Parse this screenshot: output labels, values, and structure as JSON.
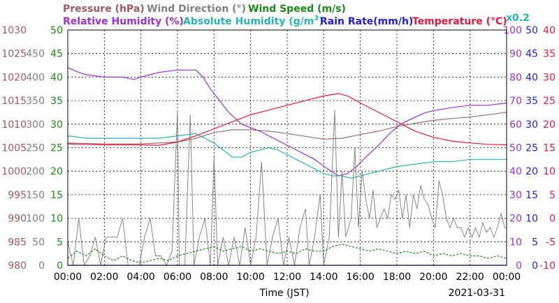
{
  "chart_data": {
    "type": "line",
    "date": "2021-03-31",
    "xlabel": "Time (JST)",
    "x_ticks": [
      "00:00",
      "02:00",
      "04:00",
      "06:00",
      "08:00",
      "10:00",
      "12:00",
      "14:00",
      "16:00",
      "18:00",
      "20:00",
      "22:00",
      "00:00"
    ],
    "x_range_hours": [
      0,
      24
    ],
    "grid": true,
    "legend_placement": "top",
    "legend": {
      "pressure": "Pressure (hPa)",
      "wind_direction": "Wind Direction (°)",
      "wind_speed": "Wind Speed (m/s)",
      "relative_humidity": "Relative Humidity (%)",
      "absolute_humidity_prefix": "Absolute Humidity (g/m",
      "absolute_humidity_sup": "3",
      "absolute_humidity_suffix": ")",
      "rain_rate": "Rain Rate(mm/h)",
      "temperature": "Temperature (°C)",
      "multiplier": "x0.2"
    },
    "axes": {
      "pressure": {
        "ticks": [
          "1030",
          "1025",
          "1020",
          "1015",
          "1010",
          "1005",
          "1000",
          "995",
          "990",
          "985",
          "980"
        ],
        "range": [
          980,
          1030
        ],
        "color": "#a05a5a"
      },
      "wind_direction": {
        "ticks": [
          "450",
          "400",
          "350",
          "300",
          "250",
          "200",
          "150",
          "100",
          "50",
          "0"
        ],
        "range": [
          0,
          500
        ],
        "color": "#808080"
      },
      "wind_speed": {
        "ticks": [
          "50",
          "45",
          "40",
          "35",
          "30",
          "25",
          "20",
          "15",
          "10",
          "5",
          "0"
        ],
        "range": [
          0,
          50
        ],
        "color": "#1a8a1a"
      },
      "relative_humidity": {
        "ticks": [
          "100",
          "90",
          "80",
          "70",
          "60",
          "50",
          "40",
          "30",
          "20",
          "10",
          "0"
        ],
        "range": [
          0,
          100
        ],
        "color": "#9b30d8"
      },
      "rain_rate": {
        "ticks": [
          "50",
          "45",
          "40",
          "35",
          "30",
          "25",
          "20",
          "15",
          "10",
          "5",
          "0"
        ],
        "range": [
          0,
          50
        ],
        "color": "#1e1ee6"
      },
      "temperature": {
        "ticks": [
          "40",
          "35",
          "30",
          "25",
          "20",
          "15",
          "10",
          "5",
          "0",
          "-5",
          "-10"
        ],
        "range": [
          -10,
          40
        ],
        "color": "#e6193c"
      }
    },
    "series": [
      {
        "name": "Pressure (hPa)",
        "key": "pressure",
        "color": "#a07070",
        "points": [
          [
            0,
            1006.0
          ],
          [
            2,
            1005.8
          ],
          [
            4,
            1005.8
          ],
          [
            6,
            1006.2
          ],
          [
            7,
            1007.0
          ],
          [
            8,
            1008.2
          ],
          [
            9,
            1008.8
          ],
          [
            10,
            1008.8
          ],
          [
            11,
            1008.5
          ],
          [
            12,
            1008.0
          ],
          [
            13,
            1007.4
          ],
          [
            14,
            1006.8
          ],
          [
            15,
            1007.0
          ],
          [
            16,
            1007.8
          ],
          [
            17,
            1008.5
          ],
          [
            18,
            1009.5
          ],
          [
            19,
            1010.2
          ],
          [
            20,
            1010.8
          ],
          [
            21,
            1011.2
          ],
          [
            22,
            1011.5
          ],
          [
            23,
            1012.0
          ],
          [
            24,
            1012.5
          ]
        ]
      },
      {
        "name": "Relative Humidity (%)",
        "key": "relative_humidity",
        "color": "#9b30d8",
        "points": [
          [
            0,
            84
          ],
          [
            0.3,
            83
          ],
          [
            0.6,
            82
          ],
          [
            1,
            81
          ],
          [
            2,
            80
          ],
          [
            3,
            80
          ],
          [
            3.6,
            79
          ],
          [
            4,
            80
          ],
          [
            4.5,
            81
          ],
          [
            5,
            82
          ],
          [
            6,
            83
          ],
          [
            7,
            83
          ],
          [
            7.4,
            80
          ],
          [
            7.8,
            75
          ],
          [
            8.3,
            70
          ],
          [
            8.8,
            65
          ],
          [
            9.5,
            60
          ],
          [
            10.5,
            57
          ],
          [
            11.5,
            53
          ],
          [
            12.5,
            49
          ],
          [
            13.5,
            45
          ],
          [
            14.2,
            41
          ],
          [
            14.8,
            38
          ],
          [
            15.3,
            39
          ],
          [
            15.8,
            42
          ],
          [
            16.3,
            46
          ],
          [
            17,
            51
          ],
          [
            17.6,
            56
          ],
          [
            18.2,
            60
          ],
          [
            19,
            63
          ],
          [
            19.6,
            65
          ],
          [
            20.2,
            66
          ],
          [
            21,
            67
          ],
          [
            22,
            68
          ],
          [
            23,
            68
          ],
          [
            24,
            69
          ]
        ]
      },
      {
        "name": "Absolute Humidity (g/m3)",
        "key": "absolute_humidity_x0.2",
        "color": "#28b4b4",
        "points": [
          [
            0,
            55
          ],
          [
            1,
            54
          ],
          [
            2,
            54
          ],
          [
            3,
            54
          ],
          [
            4,
            54
          ],
          [
            5,
            54
          ],
          [
            6,
            55
          ],
          [
            7,
            56
          ],
          [
            7.5,
            54
          ],
          [
            8,
            52
          ],
          [
            8.5,
            49
          ],
          [
            9,
            46
          ],
          [
            9.5,
            46
          ],
          [
            10,
            48
          ],
          [
            10.5,
            49
          ],
          [
            11,
            50
          ],
          [
            11.5,
            49
          ],
          [
            12,
            47
          ],
          [
            12.5,
            45
          ],
          [
            13,
            43
          ],
          [
            13.5,
            41
          ],
          [
            14,
            39
          ],
          [
            14.5,
            38
          ],
          [
            15,
            38
          ],
          [
            15.5,
            37
          ],
          [
            16,
            38
          ],
          [
            17,
            40
          ],
          [
            18,
            42
          ],
          [
            19,
            43
          ],
          [
            20,
            44
          ],
          [
            21,
            44
          ],
          [
            22,
            45
          ],
          [
            23,
            45
          ],
          [
            24,
            45
          ]
        ]
      },
      {
        "name": "Temperature (°C)",
        "key": "temperature",
        "color": "#e6193c",
        "points": [
          [
            0,
            15.8
          ],
          [
            1,
            15.7
          ],
          [
            2,
            15.6
          ],
          [
            3,
            15.6
          ],
          [
            4,
            15.6
          ],
          [
            5,
            15.5
          ],
          [
            6,
            16.2
          ],
          [
            7,
            17.5
          ],
          [
            8,
            19.0
          ],
          [
            9,
            20.5
          ],
          [
            10,
            22.0
          ],
          [
            11,
            23.0
          ],
          [
            12,
            24.0
          ],
          [
            13,
            25.0
          ],
          [
            14,
            26.0
          ],
          [
            14.8,
            26.5
          ],
          [
            15.3,
            26.0
          ],
          [
            16,
            24.5
          ],
          [
            17,
            22.5
          ],
          [
            18,
            20.5
          ],
          [
            19,
            18.5
          ],
          [
            20,
            17.2
          ],
          [
            21,
            16.4
          ],
          [
            22,
            16.0
          ],
          [
            23,
            15.7
          ],
          [
            24,
            15.6
          ]
        ]
      },
      {
        "name": "Wind Direction (°)",
        "key": "wind_direction",
        "color": "#7a7a7a",
        "points": [
          [
            0,
            50
          ],
          [
            0.3,
            0
          ],
          [
            0.6,
            100
          ],
          [
            0.9,
            0
          ],
          [
            1.2,
            20
          ],
          [
            1.5,
            60
          ],
          [
            1.8,
            0
          ],
          [
            2.1,
            60
          ],
          [
            2.4,
            60
          ],
          [
            2.7,
            60
          ],
          [
            3.0,
            100
          ],
          [
            3.3,
            0
          ],
          [
            3.6,
            0
          ],
          [
            3.9,
            0
          ],
          [
            4.2,
            60
          ],
          [
            4.5,
            100
          ],
          [
            4.8,
            20
          ],
          [
            5.1,
            20
          ],
          [
            5.4,
            0
          ],
          [
            5.7,
            30
          ],
          [
            6.0,
            330
          ],
          [
            6.1,
            0
          ],
          [
            6.4,
            0
          ],
          [
            6.7,
            320
          ],
          [
            6.9,
            0
          ],
          [
            7.2,
            60
          ],
          [
            7.5,
            100
          ],
          [
            7.8,
            0
          ],
          [
            8.0,
            230
          ],
          [
            8.2,
            0
          ],
          [
            8.5,
            60
          ],
          [
            8.8,
            0
          ],
          [
            9.1,
            60
          ],
          [
            9.4,
            0
          ],
          [
            9.7,
            80
          ],
          [
            10.0,
            0
          ],
          [
            10.3,
            60
          ],
          [
            10.6,
            220
          ],
          [
            10.9,
            0
          ],
          [
            11.2,
            60
          ],
          [
            11.5,
            100
          ],
          [
            11.8,
            0
          ],
          [
            12.1,
            60
          ],
          [
            12.4,
            0
          ],
          [
            12.7,
            80
          ],
          [
            13.0,
            120
          ],
          [
            13.2,
            0
          ],
          [
            13.5,
            60
          ],
          [
            13.8,
            150
          ],
          [
            14.0,
            0
          ],
          [
            14.3,
            60
          ],
          [
            14.6,
            330
          ],
          [
            14.8,
            60
          ],
          [
            15.0,
            200
          ],
          [
            15.2,
            60
          ],
          [
            15.5,
            100
          ],
          [
            15.7,
            250
          ],
          [
            15.9,
            80
          ],
          [
            16.1,
            200
          ],
          [
            16.3,
            140
          ],
          [
            16.5,
            100
          ],
          [
            16.7,
            160
          ],
          [
            16.9,
            80
          ],
          [
            17.1,
            100
          ],
          [
            17.3,
            120
          ],
          [
            17.5,
            100
          ],
          [
            17.7,
            150
          ],
          [
            17.9,
            140
          ],
          [
            18.1,
            160
          ],
          [
            18.3,
            100
          ],
          [
            18.5,
            150
          ],
          [
            18.7,
            80
          ],
          [
            18.9,
            150
          ],
          [
            19.1,
            120
          ],
          [
            19.3,
            170
          ],
          [
            19.5,
            140
          ],
          [
            19.7,
            130
          ],
          [
            19.9,
            100
          ],
          [
            20.1,
            80
          ],
          [
            20.3,
            180
          ],
          [
            20.5,
            150
          ],
          [
            20.7,
            100
          ],
          [
            20.9,
            80
          ],
          [
            21.1,
            100
          ],
          [
            21.3,
            80
          ],
          [
            21.5,
            80
          ],
          [
            21.7,
            60
          ],
          [
            21.9,
            80
          ],
          [
            22.1,
            60
          ],
          [
            22.3,
            80
          ],
          [
            22.5,
            60
          ],
          [
            22.7,
            90
          ],
          [
            22.9,
            70
          ],
          [
            23.1,
            80
          ],
          [
            23.3,
            60
          ],
          [
            23.5,
            80
          ],
          [
            23.7,
            110
          ],
          [
            23.9,
            80
          ],
          [
            24,
            80
          ]
        ]
      },
      {
        "name": "Wind Speed (m/s)",
        "key": "wind_speed",
        "color": "#1a8a1a",
        "points": [
          [
            0,
            1.5
          ],
          [
            0.5,
            3
          ],
          [
            1,
            2
          ],
          [
            1.5,
            3.5
          ],
          [
            2,
            2
          ],
          [
            2.5,
            1
          ],
          [
            3,
            2
          ],
          [
            3.5,
            1
          ],
          [
            4,
            0.5
          ],
          [
            4.5,
            1
          ],
          [
            5,
            1.5
          ],
          [
            5.5,
            1
          ],
          [
            6,
            2
          ],
          [
            6.5,
            2.5
          ],
          [
            7,
            3
          ],
          [
            7.5,
            3.5
          ],
          [
            8,
            4
          ],
          [
            8.5,
            3
          ],
          [
            9,
            3.5
          ],
          [
            9.5,
            4
          ],
          [
            10,
            3
          ],
          [
            10.5,
            3.5
          ],
          [
            11,
            3
          ],
          [
            11.5,
            2.5
          ],
          [
            12,
            3
          ],
          [
            12.5,
            2.5
          ],
          [
            13,
            3.5
          ],
          [
            13.5,
            3
          ],
          [
            14,
            3
          ],
          [
            14.5,
            4
          ],
          [
            15,
            4.5
          ],
          [
            15.5,
            4
          ],
          [
            16,
            3.5
          ],
          [
            16.5,
            3
          ],
          [
            17,
            3.5
          ],
          [
            17.5,
            3
          ],
          [
            18,
            2.5
          ],
          [
            18.5,
            3
          ],
          [
            19,
            2.5
          ],
          [
            19.5,
            3
          ],
          [
            20,
            2
          ],
          [
            20.5,
            2.5
          ],
          [
            21,
            2
          ],
          [
            21.5,
            2.5
          ],
          [
            22,
            2
          ],
          [
            22.5,
            2
          ],
          [
            23,
            1.5
          ],
          [
            23.5,
            2
          ],
          [
            24,
            1.5
          ]
        ]
      },
      {
        "name": "Rain Rate(mm/h)",
        "key": "rain_rate",
        "color": "#1e1ee6",
        "points": [
          [
            0,
            0
          ],
          [
            24,
            0
          ]
        ]
      }
    ]
  }
}
